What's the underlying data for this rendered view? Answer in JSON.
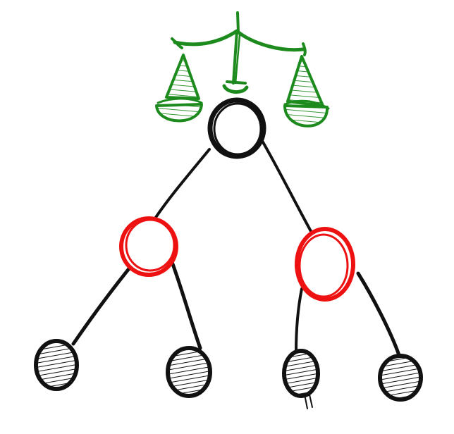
{
  "diagram": {
    "kind": "red-black-tree",
    "balance_icon": "balance-scale-icon",
    "colors": {
      "black": "#111111",
      "red": "#ee1111",
      "green": "#1d8a1d",
      "leaf_fill": "#d9d9d9"
    },
    "nodes": [
      {
        "id": "root",
        "color": "black",
        "kind": "node"
      },
      {
        "id": "left-child",
        "color": "red",
        "kind": "node"
      },
      {
        "id": "right-child",
        "color": "red",
        "kind": "node"
      },
      {
        "id": "leaf-1",
        "color": "black",
        "kind": "nil-leaf"
      },
      {
        "id": "leaf-2",
        "color": "black",
        "kind": "nil-leaf"
      },
      {
        "id": "leaf-3",
        "color": "black",
        "kind": "nil-leaf"
      },
      {
        "id": "leaf-4",
        "color": "black",
        "kind": "nil-leaf"
      }
    ],
    "edges": [
      {
        "from": "root",
        "to": "left-child"
      },
      {
        "from": "root",
        "to": "right-child"
      },
      {
        "from": "left-child",
        "to": "leaf-1"
      },
      {
        "from": "left-child",
        "to": "leaf-2"
      },
      {
        "from": "right-child",
        "to": "leaf-3"
      },
      {
        "from": "right-child",
        "to": "leaf-4"
      }
    ]
  }
}
